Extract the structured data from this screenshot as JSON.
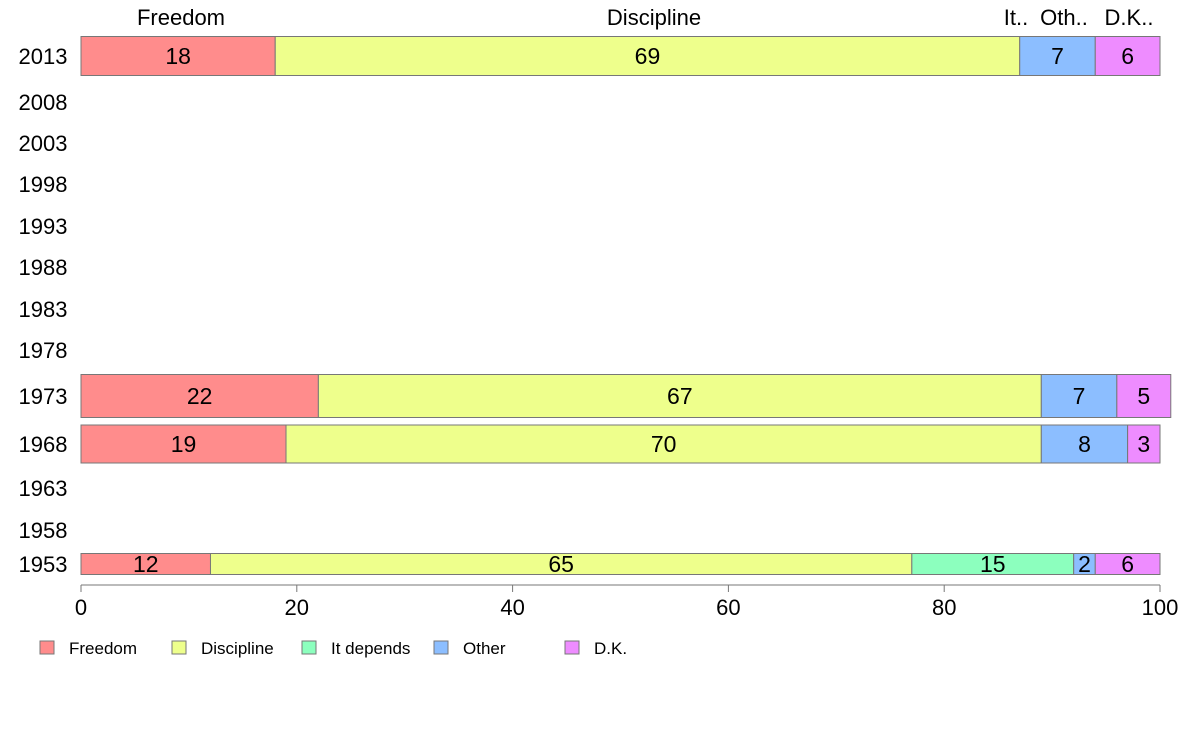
{
  "chart_data": {
    "type": "bar",
    "orientation": "horizontal",
    "stacked": true,
    "categories": [
      "2013",
      "2008",
      "2003",
      "1998",
      "1993",
      "1988",
      "1983",
      "1978",
      "1973",
      "1968",
      "1963",
      "1958",
      "1953"
    ],
    "series": [
      {
        "name": "Freedom",
        "color": "#FF8C8C",
        "values": [
          18,
          null,
          null,
          null,
          null,
          null,
          null,
          null,
          22,
          19,
          null,
          null,
          12
        ]
      },
      {
        "name": "Discipline",
        "color": "#EEFF8C",
        "values": [
          69,
          null,
          null,
          null,
          null,
          null,
          null,
          null,
          67,
          70,
          null,
          null,
          65
        ]
      },
      {
        "name": "It depends",
        "color": "#8CFFBE",
        "values": [
          null,
          null,
          null,
          null,
          null,
          null,
          null,
          null,
          null,
          null,
          null,
          null,
          15
        ]
      },
      {
        "name": "Other",
        "color": "#8CBEFF",
        "values": [
          7,
          null,
          null,
          null,
          null,
          null,
          null,
          null,
          7,
          8,
          null,
          null,
          2
        ]
      },
      {
        "name": "D.K.",
        "color": "#EE8CFF",
        "values": [
          6,
          null,
          null,
          null,
          null,
          null,
          null,
          null,
          5,
          3,
          null,
          null,
          6
        ]
      }
    ],
    "top_labels": [
      "Freedom",
      "Discipline",
      "It..",
      "Oth..",
      "D.K.."
    ],
    "xlim": [
      0,
      100
    ],
    "xticks": [
      "0",
      "20",
      "40",
      "60",
      "80",
      "100"
    ],
    "grid": false,
    "legend_position": "bottom"
  }
}
